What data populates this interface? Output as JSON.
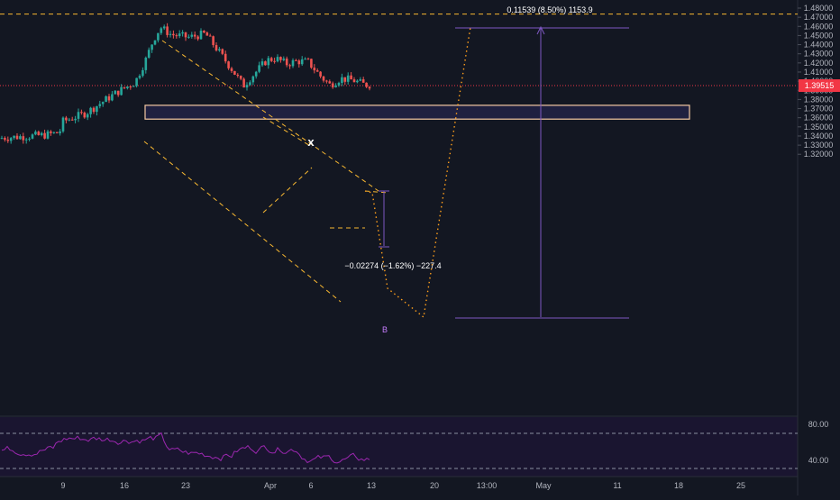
{
  "chart_data": {
    "type": "candlestick",
    "instrument_note": "",
    "price_axis": {
      "range": [
        1.315,
        1.485
      ],
      "ticks": [
        "1.48000",
        "1.47000",
        "1.46000",
        "1.45000",
        "1.44000",
        "1.43000",
        "1.42000",
        "1.41000",
        "1.40000",
        "1.39000",
        "1.38000",
        "1.37000",
        "1.36000",
        "1.35000",
        "1.34000",
        "1.33000",
        "1.32000"
      ],
      "last_price": "1.39515"
    },
    "time_axis": {
      "ticks": [
        "9",
        "16",
        "23",
        "Apr",
        "6",
        "13",
        "20",
        "13:00",
        "May",
        "11",
        "18",
        "25"
      ]
    },
    "rsi_panel": {
      "ticks": [
        "80.00",
        "40.00"
      ],
      "upper_band": 70,
      "lower_band": 30
    },
    "annotations": {
      "top_measure": "0.11539 (8.50%) 1153.9",
      "mid_measure": "−0.02274 (−1.62%) −227.4",
      "x_marker": "x",
      "b_marker": "B"
    },
    "zone": {
      "price_top": 1.3736,
      "price_bottom": 1.3585
    },
    "target_level": 1.4735,
    "colors": {
      "background": "#131722",
      "up_candle": "#26a69a",
      "down_candle": "#ef5350",
      "pattern_lines": "#f7b731",
      "projection": "#ff9f1c",
      "measure": "#7e57c2",
      "rsi": "#9c27b0",
      "zone_border": "#f5c9a3",
      "zone_fill": "#1f2040",
      "last_price": "#f23645"
    }
  }
}
